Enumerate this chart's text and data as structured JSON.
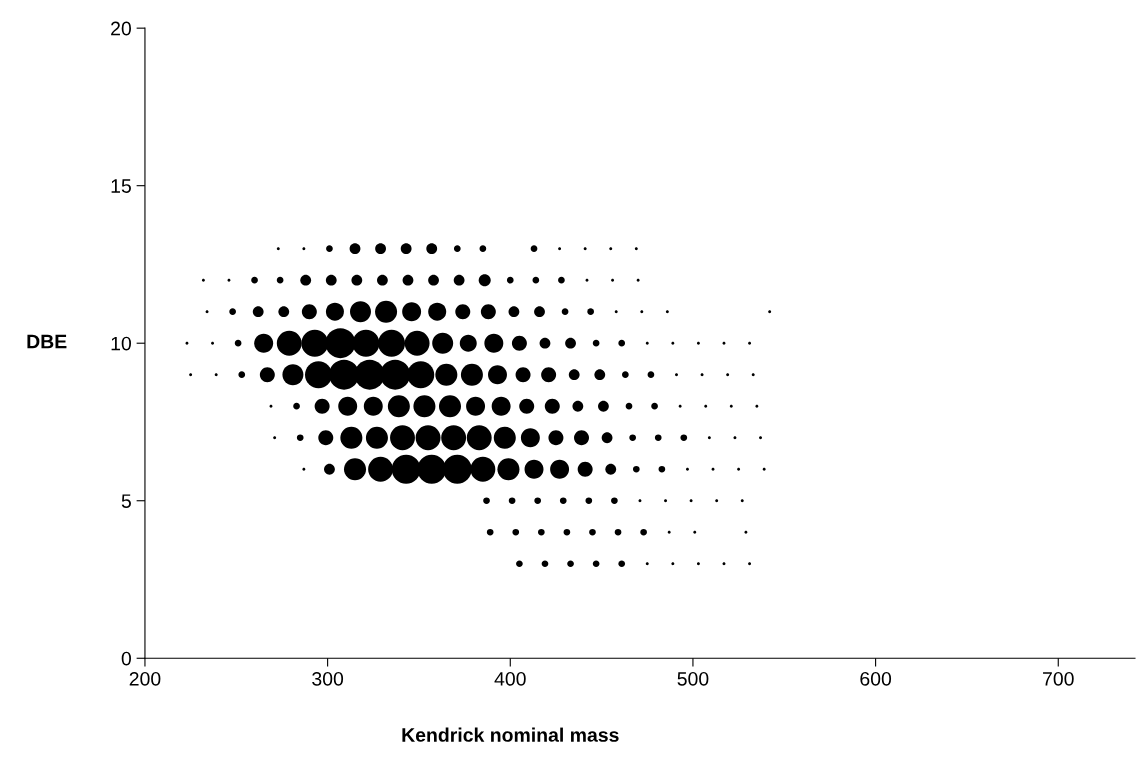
{
  "chart_data": {
    "type": "bubble",
    "xlabel": "Kendrick nominal mass",
    "ylabel": "DBE",
    "xlim": [
      200,
      742
    ],
    "xticks": [
      200,
      300,
      400,
      500,
      600,
      700
    ],
    "ylim": [
      0,
      20
    ],
    "yticks": [
      0,
      5,
      10,
      15,
      20
    ],
    "grid": false,
    "marker": "circle",
    "series": [
      {
        "color": "#000000",
        "x": [
          273,
          287,
          301,
          315,
          329,
          343,
          357,
          371,
          385,
          413,
          427,
          441,
          455,
          469
        ],
        "values": [
          13,
          13,
          13,
          13,
          13,
          13,
          13,
          13,
          13,
          13,
          13,
          13,
          13,
          13
        ],
        "sizes": [
          0.01,
          0.01,
          0.05,
          0.13,
          0.13,
          0.13,
          0.13,
          0.05,
          0.05,
          0.05,
          0.01,
          0.01,
          0.01,
          0.01
        ]
      },
      {
        "color": "#000000",
        "x": [
          232,
          246,
          260,
          274,
          288,
          302,
          316,
          330,
          344,
          358,
          372,
          386,
          400,
          414,
          428,
          442,
          456,
          470
        ],
        "values": [
          12,
          12,
          12,
          12,
          12,
          12,
          12,
          12,
          12,
          12,
          12,
          12,
          12,
          12,
          12,
          12,
          12,
          12
        ],
        "sizes": [
          0.01,
          0.01,
          0.05,
          0.05,
          0.13,
          0.13,
          0.13,
          0.13,
          0.13,
          0.13,
          0.13,
          0.16,
          0.05,
          0.05,
          0.05,
          0.01,
          0.01,
          0.01
        ]
      },
      {
        "color": "#000000",
        "x": [
          234,
          248,
          262,
          276,
          290,
          304,
          318,
          332,
          346,
          360,
          374,
          388,
          402,
          416,
          430,
          444,
          458,
          472,
          486,
          542
        ],
        "values": [
          11,
          11,
          11,
          11,
          11,
          11,
          11,
          11,
          11,
          11,
          11,
          11,
          11,
          11,
          11,
          11,
          11,
          11,
          11,
          11
        ],
        "sizes": [
          0.01,
          0.05,
          0.13,
          0.13,
          0.25,
          0.36,
          0.49,
          0.54,
          0.4,
          0.36,
          0.25,
          0.25,
          0.13,
          0.13,
          0.05,
          0.05,
          0.01,
          0.01,
          0.01,
          0.01
        ]
      },
      {
        "color": "#000000",
        "x": [
          223,
          237,
          251,
          265,
          279,
          293,
          307,
          321,
          335,
          349,
          363,
          377,
          391,
          405,
          419,
          433,
          447,
          461,
          475,
          489,
          503,
          517,
          531
        ],
        "values": [
          10,
          10,
          10,
          10,
          10,
          10,
          10,
          10,
          10,
          10,
          10,
          10,
          10,
          10,
          10,
          10,
          10,
          10,
          10,
          10,
          10,
          10,
          10
        ],
        "sizes": [
          0.01,
          0.01,
          0.05,
          0.4,
          0.69,
          0.81,
          1,
          0.81,
          0.81,
          0.69,
          0.49,
          0.32,
          0.4,
          0.25,
          0.13,
          0.13,
          0.05,
          0.05,
          0.01,
          0.01,
          0.01,
          0.01,
          0.01
        ]
      },
      {
        "color": "#000000",
        "x": [
          225,
          239,
          253,
          267,
          281,
          295,
          309,
          323,
          337,
          351,
          365,
          379,
          393,
          407,
          421,
          435,
          449,
          463,
          477,
          491,
          505,
          519,
          533
        ],
        "values": [
          9,
          9,
          9,
          9,
          9,
          9,
          9,
          9,
          9,
          9,
          9,
          9,
          9,
          9,
          9,
          9,
          9,
          9,
          9,
          9,
          9,
          9,
          9
        ],
        "sizes": [
          0.01,
          0.01,
          0.05,
          0.25,
          0.49,
          0.81,
          1,
          1,
          1,
          0.81,
          0.54,
          0.54,
          0.4,
          0.25,
          0.25,
          0.13,
          0.13,
          0.05,
          0.05,
          0.01,
          0.01,
          0.01,
          0.01
        ]
      },
      {
        "color": "#000000",
        "x": [
          269,
          283,
          297,
          311,
          325,
          339,
          353,
          367,
          381,
          395,
          409,
          423,
          437,
          451,
          465,
          479,
          493,
          507,
          521,
          535
        ],
        "values": [
          8,
          8,
          8,
          8,
          8,
          8,
          8,
          8,
          8,
          8,
          8,
          8,
          8,
          8,
          8,
          8,
          8,
          8,
          8,
          8
        ],
        "sizes": [
          0.01,
          0.05,
          0.25,
          0.4,
          0.4,
          0.54,
          0.54,
          0.54,
          0.4,
          0.4,
          0.25,
          0.25,
          0.13,
          0.13,
          0.05,
          0.05,
          0.01,
          0.01,
          0.01,
          0.01
        ]
      },
      {
        "color": "#000000",
        "x": [
          271,
          285,
          299,
          313,
          327,
          341,
          355,
          369,
          383,
          397,
          411,
          425,
          439,
          453,
          467,
          481,
          495,
          509,
          523,
          537
        ],
        "values": [
          7,
          7,
          7,
          7,
          7,
          7,
          7,
          7,
          7,
          7,
          7,
          7,
          7,
          7,
          7,
          7,
          7,
          7,
          7,
          7
        ],
        "sizes": [
          0.01,
          0.05,
          0.25,
          0.54,
          0.54,
          0.69,
          0.69,
          0.69,
          0.69,
          0.54,
          0.4,
          0.25,
          0.25,
          0.13,
          0.05,
          0.05,
          0.05,
          0.01,
          0.01,
          0.01
        ]
      },
      {
        "color": "#000000",
        "x": [
          287,
          301,
          315,
          329,
          343,
          357,
          371,
          385,
          399,
          413,
          427,
          441,
          455,
          469,
          483,
          497,
          511,
          525,
          539
        ],
        "values": [
          6,
          6,
          6,
          6,
          6,
          6,
          6,
          6,
          6,
          6,
          6,
          6,
          6,
          6,
          6,
          6,
          6,
          6,
          6
        ],
        "sizes": [
          0.01,
          0.13,
          0.54,
          0.69,
          0.93,
          0.93,
          0.93,
          0.69,
          0.54,
          0.4,
          0.4,
          0.25,
          0.13,
          0.05,
          0.05,
          0.01,
          0.01,
          0.01,
          0.01
        ]
      },
      {
        "color": "#000000",
        "x": [
          387,
          401,
          415,
          429,
          443,
          457,
          471,
          485,
          499,
          513,
          527
        ],
        "values": [
          5,
          5,
          5,
          5,
          5,
          5,
          5,
          5,
          5,
          5,
          5
        ],
        "sizes": [
          0.05,
          0.05,
          0.05,
          0.05,
          0.05,
          0.05,
          0.01,
          0.01,
          0.01,
          0.01,
          0.01
        ]
      },
      {
        "color": "#000000",
        "x": [
          389,
          403,
          417,
          431,
          445,
          459,
          473,
          487,
          501,
          529
        ],
        "values": [
          4,
          4,
          4,
          4,
          4,
          4,
          4,
          4,
          4,
          4
        ],
        "sizes": [
          0.05,
          0.05,
          0.05,
          0.05,
          0.05,
          0.05,
          0.05,
          0.01,
          0.01,
          0.01
        ]
      },
      {
        "color": "#000000",
        "x": [
          405,
          419,
          433,
          447,
          461,
          475,
          489,
          503,
          517,
          531
        ],
        "values": [
          3,
          3,
          3,
          3,
          3,
          3,
          3,
          3,
          3,
          3
        ],
        "sizes": [
          0.05,
          0.05,
          0.05,
          0.05,
          0.05,
          0.01,
          0.01,
          0.01,
          0.01,
          0.01
        ]
      }
    ]
  }
}
